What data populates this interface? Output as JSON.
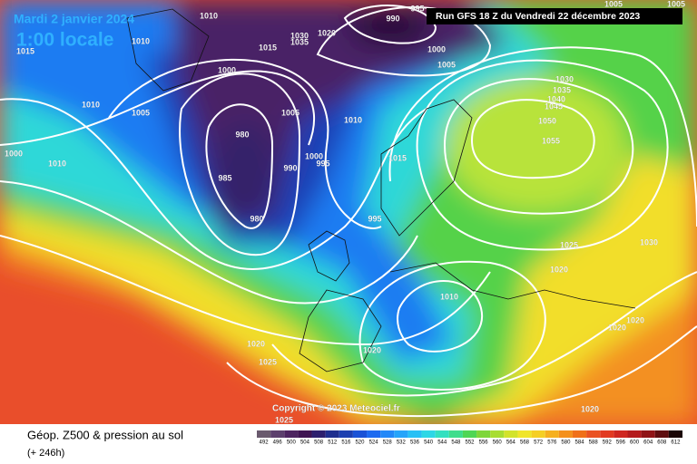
{
  "header": {
    "date": "Mardi 2 janvier 2024",
    "time": "1:00 locale",
    "run": "Run GFS 18 Z du Vendredi 22 décembre 2023"
  },
  "copyright": "Copyright © 2023 Meteociel.fr",
  "footer": {
    "title": "Géop. Z500 & pression au sol",
    "lead": "(+ 246h)"
  },
  "legend": {
    "values": [
      492,
      496,
      500,
      504,
      508,
      512,
      516,
      520,
      524,
      528,
      532,
      536,
      540,
      544,
      548,
      552,
      556,
      560,
      564,
      568,
      572,
      576,
      580,
      584,
      588,
      592,
      596,
      600,
      604,
      608,
      612
    ],
    "colors": [
      "#6a5a6e",
      "#5c3f6d",
      "#4d2460",
      "#3f1452",
      "#2d1f6e",
      "#1f2f8f",
      "#1c3fb0",
      "#1a52d6",
      "#1d6af0",
      "#2388f8",
      "#26a4fa",
      "#28c0f5",
      "#2dd7e6",
      "#34e0c0",
      "#3fdd8c",
      "#4fd655",
      "#7ed63a",
      "#a8dd32",
      "#d2e32b",
      "#f0e52a",
      "#f5cf24",
      "#f6b01f",
      "#f4901c",
      "#f07019",
      "#ea5222",
      "#e23a22",
      "#cf2620",
      "#b41a1c",
      "#901417",
      "#5e0d10",
      "#1a0606"
    ]
  },
  "isobar_labels": [
    1010,
    1010,
    1015,
    1010,
    1005,
    1000,
    1010,
    1000,
    1015,
    1030,
    1035,
    1020,
    1005,
    980,
    985,
    980,
    990,
    995,
    1000,
    995,
    1015,
    1010,
    990,
    995,
    1000,
    1005,
    1005,
    1005,
    1030,
    1035,
    1040,
    1045,
    1050,
    1055,
    1025,
    1030,
    1020,
    1010,
    1020,
    1020,
    1020,
    1020,
    1025,
    1025,
    1020
  ]
}
